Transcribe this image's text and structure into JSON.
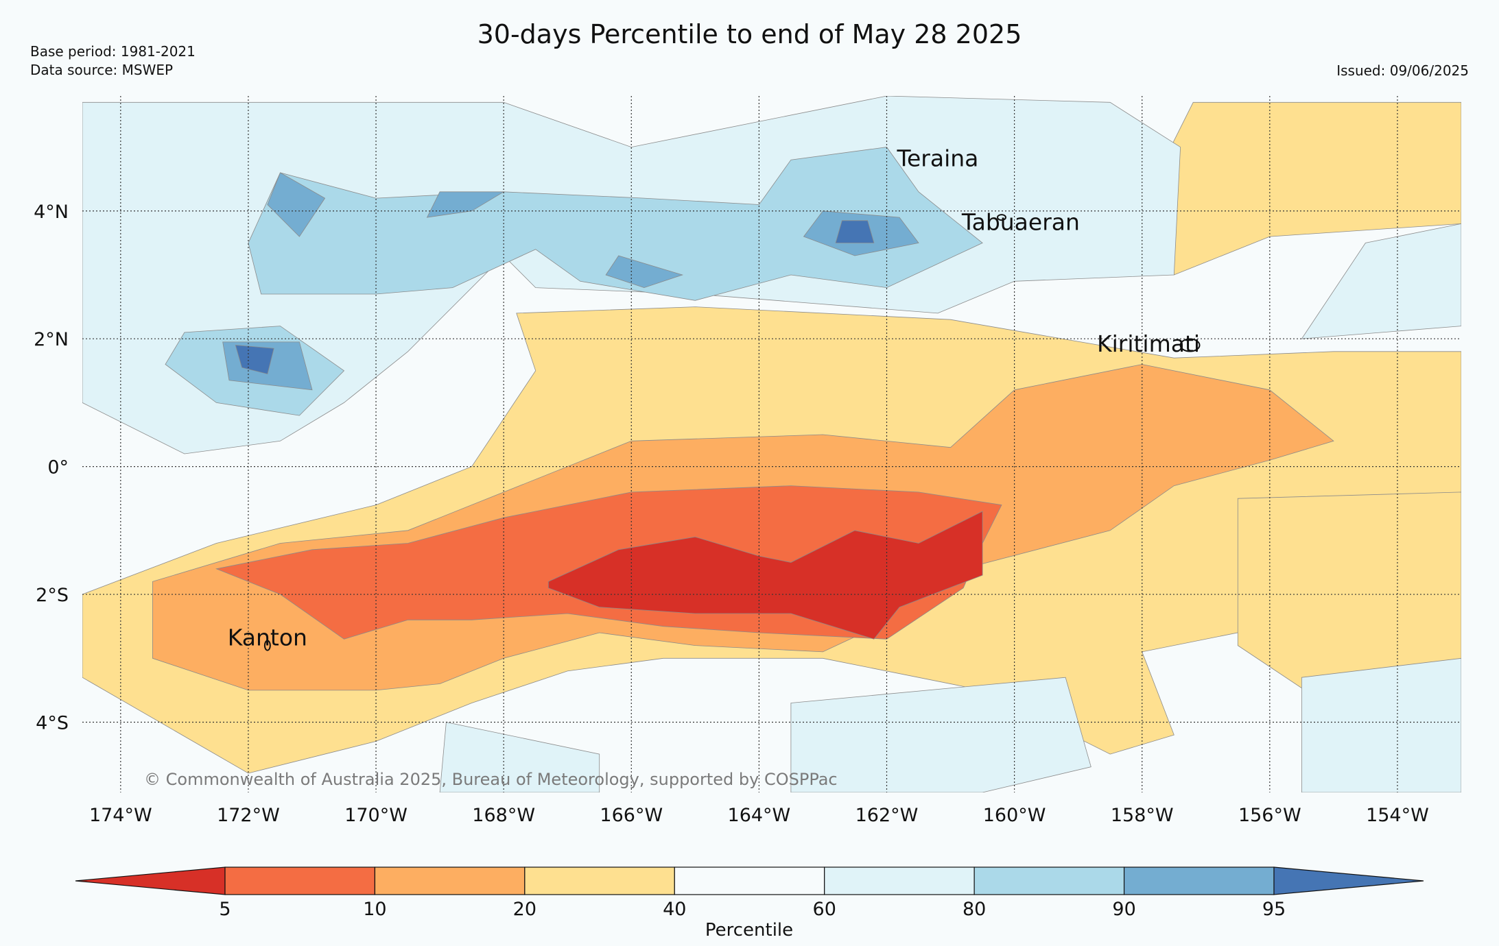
{
  "title": "30-days Percentile to end of May 28 2025",
  "base_period": "Base period: 1981-2021",
  "data_source": "Data source: MSWEP",
  "issued": "Issued: 09/06/2025",
  "copyright": "© Commonwealth of Australia 2025, Bureau of Meteorology, supported by COSPPac",
  "place_labels": [
    {
      "name": "Teraina",
      "lon": -161.2,
      "lat": 4.7
    },
    {
      "name": "Tabuaeran",
      "lon": -159.9,
      "lat": 3.7
    },
    {
      "name": "Kiritimati",
      "lon": -157.9,
      "lat": 1.8
    },
    {
      "name": "Kanton",
      "lon": -171.7,
      "lat": -2.8
    }
  ],
  "lon_ticks": [
    "174°W",
    "172°W",
    "170°W",
    "168°W",
    "166°W",
    "164°W",
    "162°W",
    "160°W",
    "158°W",
    "156°W",
    "154°W"
  ],
  "lat_ticks": [
    "4°N",
    "2°N",
    "0°",
    "2°S",
    "4°S"
  ],
  "colorbar": {
    "label": "Percentile",
    "ticks": [
      "5",
      "10",
      "20",
      "40",
      "60",
      "80",
      "90",
      "95"
    ],
    "colors": [
      "#d73027",
      "#f46d43",
      "#fdae61",
      "#fee090",
      "#f7fbfc",
      "#e0f3f8",
      "#abd9e9",
      "#74add1",
      "#4575b4"
    ]
  },
  "chart_data": {
    "type": "heatmap",
    "title": "30-days Percentile to end of May 28 2025",
    "xlim": [
      -174.6,
      -153.0
    ],
    "ylim": [
      -5.1,
      5.8
    ],
    "levels": [
      5,
      10,
      20,
      40,
      60,
      80,
      90,
      95
    ],
    "regions": [
      {
        "category": "20-40",
        "color": "#fee090",
        "polygon": [
          [
            -174.6,
            -2.0
          ],
          [
            -172.5,
            -1.2
          ],
          [
            -170,
            -0.6
          ],
          [
            -168.5,
            0.0
          ],
          [
            -167.5,
            1.5
          ],
          [
            -167.8,
            2.4
          ],
          [
            -165,
            2.5
          ],
          [
            -161,
            2.3
          ],
          [
            -157.5,
            1.7
          ],
          [
            -155,
            1.8
          ],
          [
            -153,
            1.8
          ],
          [
            -153,
            -1.0
          ],
          [
            -155.5,
            -2.4
          ],
          [
            -158,
            -2.9
          ],
          [
            -157.5,
            -4.2
          ],
          [
            -158.5,
            -4.5
          ],
          [
            -160.5,
            -3.5
          ],
          [
            -163,
            -3.0
          ],
          [
            -165.5,
            -3.0
          ],
          [
            -167,
            -3.2
          ],
          [
            -168.5,
            -3.7
          ],
          [
            -170,
            -4.3
          ],
          [
            -172,
            -4.8
          ],
          [
            -174.6,
            -3.3
          ]
        ]
      },
      {
        "category": "20-40",
        "color": "#fee090",
        "polygon": [
          [
            -157.2,
            5.7
          ],
          [
            -153,
            5.7
          ],
          [
            -153,
            3.8
          ],
          [
            -156,
            3.6
          ],
          [
            -157.5,
            3.0
          ],
          [
            -157.8,
            4.5
          ]
        ]
      },
      {
        "category": "20-40",
        "color": "#fee090",
        "polygon": [
          [
            -156.5,
            -0.5
          ],
          [
            -153,
            -0.4
          ],
          [
            -153,
            -3.0
          ],
          [
            -155,
            -3.8
          ],
          [
            -156.5,
            -2.8
          ]
        ]
      },
      {
        "category": "10-20",
        "color": "#fdae61",
        "polygon": [
          [
            -173.5,
            -1.8
          ],
          [
            -171.5,
            -1.2
          ],
          [
            -169.5,
            -1.0
          ],
          [
            -168,
            -0.4
          ],
          [
            -166,
            0.4
          ],
          [
            -163,
            0.5
          ],
          [
            -161,
            0.3
          ],
          [
            -160,
            1.2
          ],
          [
            -158,
            1.6
          ],
          [
            -156,
            1.2
          ],
          [
            -155,
            0.4
          ],
          [
            -156,
            0.1
          ],
          [
            -157.5,
            -0.3
          ],
          [
            -158.5,
            -1.0
          ],
          [
            -160.8,
            -1.6
          ],
          [
            -161.5,
            -2.2
          ],
          [
            -163,
            -2.9
          ],
          [
            -165,
            -2.8
          ],
          [
            -166.5,
            -2.6
          ],
          [
            -168,
            -3.0
          ],
          [
            -169,
            -3.4
          ],
          [
            -170,
            -3.5
          ],
          [
            -172,
            -3.5
          ],
          [
            -173.5,
            -3.0
          ]
        ]
      },
      {
        "category": "5-10",
        "color": "#f46d43",
        "polygon": [
          [
            -172.5,
            -1.6
          ],
          [
            -171,
            -1.3
          ],
          [
            -169.5,
            -1.2
          ],
          [
            -168,
            -0.8
          ],
          [
            -166,
            -0.4
          ],
          [
            -163.5,
            -0.3
          ],
          [
            -161.5,
            -0.4
          ],
          [
            -160.2,
            -0.6
          ],
          [
            -160.5,
            -1.2
          ],
          [
            -160.8,
            -1.9
          ],
          [
            -162,
            -2.7
          ],
          [
            -164,
            -2.6
          ],
          [
            -165.5,
            -2.5
          ],
          [
            -167,
            -2.3
          ],
          [
            -168.5,
            -2.4
          ],
          [
            -169.5,
            -2.4
          ],
          [
            -170.5,
            -2.7
          ],
          [
            -171.5,
            -2.0
          ]
        ]
      },
      {
        "category": "<5",
        "color": "#d73027",
        "polygon": [
          [
            -167.3,
            -1.8
          ],
          [
            -166.2,
            -1.3
          ],
          [
            -165,
            -1.1
          ],
          [
            -164,
            -1.4
          ],
          [
            -163.5,
            -1.5
          ],
          [
            -162.5,
            -1.0
          ],
          [
            -161.5,
            -1.2
          ],
          [
            -160.5,
            -0.7
          ],
          [
            -160.5,
            -1.7
          ],
          [
            -161.8,
            -2.2
          ],
          [
            -162.2,
            -2.7
          ],
          [
            -163.5,
            -2.3
          ],
          [
            -165,
            -2.3
          ],
          [
            -166.5,
            -2.2
          ],
          [
            -167.3,
            -1.9
          ]
        ]
      },
      {
        "category": "60-80",
        "color": "#e0f3f8",
        "polygon": [
          [
            -174.6,
            5.7
          ],
          [
            -168,
            5.7
          ],
          [
            -166,
            5.0
          ],
          [
            -162,
            5.8
          ],
          [
            -158.5,
            5.7
          ],
          [
            -157.4,
            5.0
          ],
          [
            -157.5,
            3.0
          ],
          [
            -160,
            2.9
          ],
          [
            -161.2,
            2.4
          ],
          [
            -165,
            2.7
          ],
          [
            -167.5,
            2.8
          ],
          [
            -168,
            3.3
          ],
          [
            -169.5,
            1.8
          ],
          [
            -170.5,
            1.0
          ],
          [
            -171.5,
            0.4
          ],
          [
            -173,
            0.2
          ],
          [
            -174.6,
            1.0
          ]
        ]
      },
      {
        "category": "60-80",
        "color": "#e0f3f8",
        "polygon": [
          [
            -153,
            3.8
          ],
          [
            -154.5,
            3.5
          ],
          [
            -155.5,
            2.0
          ],
          [
            -153,
            2.2
          ]
        ]
      },
      {
        "category": "60-80",
        "color": "#e0f3f8",
        "polygon": [
          [
            -168.9,
            -4.0
          ],
          [
            -166.5,
            -4.5
          ],
          [
            -166.5,
            -5.1
          ],
          [
            -169,
            -5.1
          ]
        ]
      },
      {
        "category": "60-80",
        "color": "#e0f3f8",
        "polygon": [
          [
            -163.5,
            -3.7
          ],
          [
            -159.2,
            -3.3
          ],
          [
            -158.8,
            -4.7
          ],
          [
            -160.5,
            -5.1
          ],
          [
            -163.5,
            -5.1
          ]
        ]
      },
      {
        "category": "60-80",
        "color": "#e0f3f8",
        "polygon": [
          [
            -155.5,
            -3.3
          ],
          [
            -153,
            -3.0
          ],
          [
            -153,
            -5.1
          ],
          [
            -155.5,
            -5.1
          ]
        ]
      },
      {
        "category": "80-90",
        "color": "#abd9e9",
        "polygon": [
          [
            -171.5,
            4.6
          ],
          [
            -170,
            4.2
          ],
          [
            -168,
            4.3
          ],
          [
            -165.8,
            4.2
          ],
          [
            -164,
            4.1
          ],
          [
            -163.5,
            4.8
          ],
          [
            -162,
            5.0
          ],
          [
            -161.5,
            4.3
          ],
          [
            -160.5,
            3.5
          ],
          [
            -162,
            2.8
          ],
          [
            -163.5,
            3.0
          ],
          [
            -165,
            2.6
          ],
          [
            -166.8,
            2.9
          ],
          [
            -167.5,
            3.4
          ],
          [
            -168.8,
            2.8
          ],
          [
            -170,
            2.7
          ],
          [
            -171.8,
            2.7
          ],
          [
            -172,
            3.5
          ]
        ]
      },
      {
        "category": "80-90",
        "color": "#abd9e9",
        "polygon": [
          [
            -173,
            2.1
          ],
          [
            -171.5,
            2.2
          ],
          [
            -170.5,
            1.5
          ],
          [
            -171.2,
            0.8
          ],
          [
            -172.5,
            1.0
          ],
          [
            -173.3,
            1.6
          ]
        ]
      },
      {
        "category": "90-95",
        "color": "#74add1",
        "polygon": [
          [
            -171.5,
            4.6
          ],
          [
            -170.8,
            4.2
          ],
          [
            -171.2,
            3.6
          ],
          [
            -171.7,
            4.1
          ]
        ]
      },
      {
        "category": "90-95",
        "color": "#74add1",
        "polygon": [
          [
            -169,
            4.3
          ],
          [
            -168,
            4.3
          ],
          [
            -168.5,
            4.0
          ],
          [
            -169.2,
            3.9
          ]
        ]
      },
      {
        "category": "90-95",
        "color": "#74add1",
        "polygon": [
          [
            -166.2,
            3.3
          ],
          [
            -165.2,
            3.0
          ],
          [
            -165.8,
            2.8
          ],
          [
            -166.4,
            3.0
          ]
        ]
      },
      {
        "category": "90-95",
        "color": "#74add1",
        "polygon": [
          [
            -163,
            4.0
          ],
          [
            -161.8,
            3.9
          ],
          [
            -161.5,
            3.5
          ],
          [
            -162.5,
            3.3
          ],
          [
            -163.3,
            3.6
          ]
        ]
      },
      {
        "category": "90-95",
        "color": "#74add1",
        "polygon": [
          [
            -172.4,
            1.95
          ],
          [
            -171.2,
            1.95
          ],
          [
            -171.0,
            1.2
          ],
          [
            -172.3,
            1.35
          ]
        ]
      },
      {
        "category": ">95",
        "color": "#4575b4",
        "polygon": [
          [
            -162.7,
            3.85
          ],
          [
            -162.3,
            3.85
          ],
          [
            -162.2,
            3.5
          ],
          [
            -162.8,
            3.5
          ]
        ]
      },
      {
        "category": ">95",
        "color": "#4575b4",
        "polygon": [
          [
            -172.2,
            1.9
          ],
          [
            -171.6,
            1.85
          ],
          [
            -171.7,
            1.45
          ],
          [
            -172.1,
            1.55
          ]
        ]
      }
    ]
  }
}
